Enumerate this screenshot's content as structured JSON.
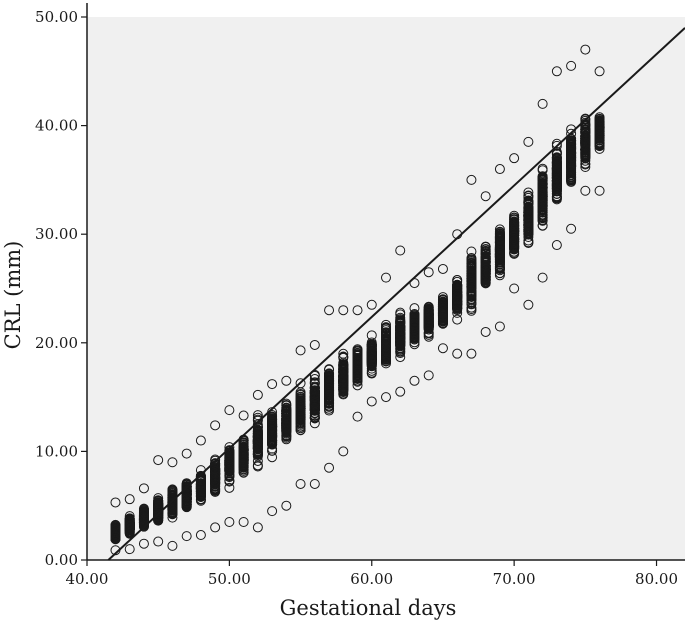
{
  "chart_data": {
    "type": "scatter",
    "title": "",
    "xlabel": "Gestational days",
    "ylabel": "CRL (mm)",
    "xlim": [
      40,
      82
    ],
    "ylim": [
      0,
      50
    ],
    "xticks": [
      "40.00",
      "50.00",
      "60.00",
      "70.00",
      "80.00"
    ],
    "yticks": [
      "0.00",
      "10.00",
      "20.00",
      "30.00",
      "40.00",
      "50.00"
    ],
    "grid": false,
    "legend": "none",
    "plot_background": "#f0f0f0",
    "marker": "open-circle",
    "point_color": "#1a1a1a",
    "line_color": "#1a1a1a",
    "fit_line": {
      "x": [
        41.5,
        82
      ],
      "y": [
        0,
        49
      ]
    },
    "columns": [
      {
        "x": 42,
        "y_min": 0.9,
        "y_max": 5.3,
        "mean": 2.5
      },
      {
        "x": 43,
        "y_min": 1.0,
        "y_max": 5.6,
        "mean": 3.2
      },
      {
        "x": 44,
        "y_min": 1.5,
        "y_max": 6.6,
        "mean": 3.8
      },
      {
        "x": 45,
        "y_min": 1.7,
        "y_max": 9.2,
        "mean": 4.5
      },
      {
        "x": 46,
        "y_min": 1.3,
        "y_max": 9.0,
        "mean": 5.2
      },
      {
        "x": 47,
        "y_min": 2.2,
        "y_max": 9.8,
        "mean": 6.0
      },
      {
        "x": 48,
        "y_min": 2.3,
        "y_max": 11.0,
        "mean": 6.8
      },
      {
        "x": 49,
        "y_min": 3.0,
        "y_max": 12.4,
        "mean": 7.8
      },
      {
        "x": 50,
        "y_min": 3.5,
        "y_max": 13.8,
        "mean": 8.8
      },
      {
        "x": 51,
        "y_min": 3.5,
        "y_max": 13.3,
        "mean": 9.8
      },
      {
        "x": 52,
        "y_min": 3.0,
        "y_max": 15.2,
        "mean": 10.8
      },
      {
        "x": 53,
        "y_min": 4.5,
        "y_max": 16.2,
        "mean": 11.8
      },
      {
        "x": 54,
        "y_min": 5.0,
        "y_max": 16.5,
        "mean": 12.8
      },
      {
        "x": 55,
        "y_min": 7.0,
        "y_max": 19.3,
        "mean": 13.8
      },
      {
        "x": 56,
        "y_min": 7.0,
        "y_max": 19.8,
        "mean": 14.8
      },
      {
        "x": 57,
        "y_min": 8.5,
        "y_max": 23.0,
        "mean": 15.8
      },
      {
        "x": 58,
        "y_min": 10.0,
        "y_max": 23.0,
        "mean": 16.8
      },
      {
        "x": 59,
        "y_min": 13.2,
        "y_max": 23.0,
        "mean": 17.8
      },
      {
        "x": 60,
        "y_min": 14.6,
        "y_max": 23.5,
        "mean": 18.8
      },
      {
        "x": 61,
        "y_min": 15.0,
        "y_max": 26.0,
        "mean": 19.8
      },
      {
        "x": 62,
        "y_min": 15.5,
        "y_max": 28.5,
        "mean": 20.8
      },
      {
        "x": 63,
        "y_min": 16.5,
        "y_max": 25.5,
        "mean": 21.5
      },
      {
        "x": 64,
        "y_min": 17.0,
        "y_max": 26.5,
        "mean": 22.2
      },
      {
        "x": 65,
        "y_min": 19.5,
        "y_max": 26.8,
        "mean": 23.0
      },
      {
        "x": 66,
        "y_min": 19.0,
        "y_max": 30.0,
        "mean": 24.2
      },
      {
        "x": 67,
        "y_min": 19.0,
        "y_max": 35.0,
        "mean": 25.5
      },
      {
        "x": 68,
        "y_min": 21.0,
        "y_max": 33.5,
        "mean": 27.0
      },
      {
        "x": 69,
        "y_min": 21.5,
        "y_max": 36.0,
        "mean": 28.5
      },
      {
        "x": 70,
        "y_min": 25.0,
        "y_max": 37.0,
        "mean": 30.0
      },
      {
        "x": 71,
        "y_min": 23.5,
        "y_max": 38.5,
        "mean": 31.5
      },
      {
        "x": 72,
        "y_min": 26.0,
        "y_max": 42.0,
        "mean": 33.5
      },
      {
        "x": 73,
        "y_min": 29.0,
        "y_max": 45.0,
        "mean": 35.5
      },
      {
        "x": 74,
        "y_min": 30.5,
        "y_max": 45.5,
        "mean": 37.0
      },
      {
        "x": 75,
        "y_min": 34.0,
        "y_max": 47.0,
        "mean": 38.5
      },
      {
        "x": 76,
        "y_min": 34.0,
        "y_max": 45.0,
        "mean": 39.5
      }
    ]
  }
}
